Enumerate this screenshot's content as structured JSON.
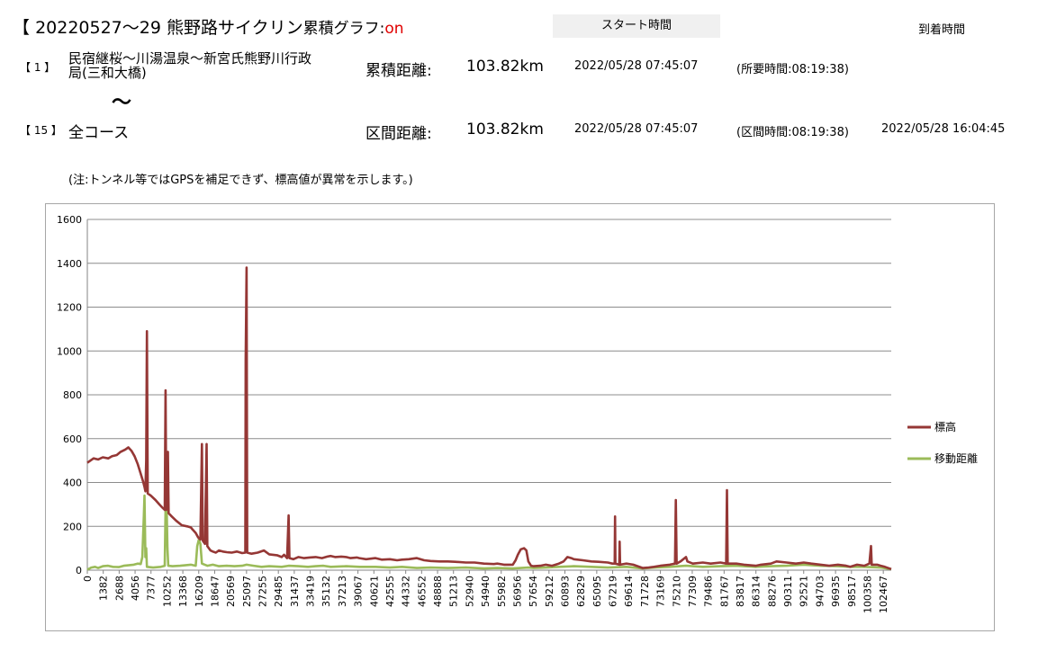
{
  "header": {
    "title_bracket": "【",
    "title_text": "20220527～29 熊野路サイクリン",
    "graph_label": "累積グラフ:",
    "graph_state": "on",
    "start_time_label": "スタート時間",
    "arrival_time_label": "到着時間"
  },
  "routes": {
    "first": {
      "num": "【 1 】",
      "name_line1": "民宿継桜～川湯温泉～新宮氏熊野川行政",
      "name_line2": "局(三和大橋)",
      "distance_label": "累積距離:",
      "distance_value": "103.82km",
      "start": "2022/05/28 07:45:07",
      "duration": "(所要時間:08:19:38)"
    },
    "tilde": "～",
    "second": {
      "num": "【 15 】",
      "name": "全コース",
      "distance_label": "区間距離:",
      "distance_value": "103.82km",
      "start": "2022/05/28 07:45:07",
      "duration": "(区間時間:08:19:38)",
      "arrival": "2022/05/28 16:04:45"
    }
  },
  "note": "(注:トンネル等ではGPSを補足できず、標高値が異常を示します。)",
  "chart_data": {
    "type": "line",
    "title": "",
    "xlabel": "",
    "ylabel": "",
    "ylim": [
      0,
      1600
    ],
    "xlim": [
      0,
      103820
    ],
    "y_ticks": [
      0,
      200,
      400,
      600,
      800,
      1000,
      1200,
      1400,
      1600
    ],
    "x_tick_labels": [
      "0",
      "1382",
      "2688",
      "4056",
      "7377",
      "10252",
      "13368",
      "16209",
      "18647",
      "20569",
      "25097",
      "27255",
      "29485",
      "31437",
      "33419",
      "35132",
      "37213",
      "39067",
      "40621",
      "42555",
      "44332",
      "46552",
      "48888",
      "51213",
      "52940",
      "54940",
      "55982",
      "56956",
      "57654",
      "59212",
      "60893",
      "62829",
      "65095",
      "67219",
      "69614",
      "71728",
      "73169",
      "75210",
      "77309",
      "79486",
      "81767",
      "83817",
      "86314",
      "88276",
      "90311",
      "92521",
      "94703",
      "96935",
      "98517",
      "100358",
      "102467"
    ],
    "grid": true,
    "legend_position": "right",
    "series": [
      {
        "name": "標高",
        "color": "#953735",
        "points": [
          [
            0,
            490
          ],
          [
            800,
            510
          ],
          [
            1400,
            505
          ],
          [
            2000,
            515
          ],
          [
            2700,
            510
          ],
          [
            3200,
            520
          ],
          [
            3800,
            525
          ],
          [
            4300,
            540
          ],
          [
            4900,
            550
          ],
          [
            5300,
            560
          ],
          [
            5700,
            545
          ],
          [
            6100,
            520
          ],
          [
            6500,
            485
          ],
          [
            6900,
            440
          ],
          [
            7200,
            405
          ],
          [
            7377,
            380
          ],
          [
            7500,
            360
          ],
          [
            7600,
            500
          ],
          [
            7700,
            1090
          ],
          [
            7800,
            350
          ],
          [
            8200,
            340
          ],
          [
            8800,
            320
          ],
          [
            9300,
            300
          ],
          [
            9700,
            285
          ],
          [
            10000,
            275
          ],
          [
            10100,
            820
          ],
          [
            10200,
            275
          ],
          [
            10400,
            540
          ],
          [
            10500,
            260
          ],
          [
            10900,
            245
          ],
          [
            11500,
            225
          ],
          [
            12200,
            205
          ],
          [
            12900,
            200
          ],
          [
            13368,
            195
          ],
          [
            13600,
            185
          ],
          [
            14000,
            170
          ],
          [
            14300,
            150
          ],
          [
            14600,
            140
          ],
          [
            14800,
            575
          ],
          [
            14900,
            135
          ],
          [
            15200,
            120
          ],
          [
            15400,
            575
          ],
          [
            15500,
            110
          ],
          [
            15900,
            90
          ],
          [
            16209,
            85
          ],
          [
            16600,
            80
          ],
          [
            17000,
            90
          ],
          [
            17500,
            85
          ],
          [
            18000,
            82
          ],
          [
            18647,
            80
          ],
          [
            19300,
            85
          ],
          [
            20000,
            78
          ],
          [
            20400,
            80
          ],
          [
            20450,
            960
          ],
          [
            20569,
            1380
          ],
          [
            20650,
            80
          ],
          [
            21200,
            75
          ],
          [
            22000,
            80
          ],
          [
            22800,
            90
          ],
          [
            23500,
            72
          ],
          [
            24000,
            70
          ],
          [
            24500,
            68
          ],
          [
            25097,
            60
          ],
          [
            25400,
            70
          ],
          [
            25800,
            55
          ],
          [
            26000,
            250
          ],
          [
            26100,
            55
          ],
          [
            26600,
            50
          ],
          [
            27255,
            60
          ],
          [
            28000,
            55
          ],
          [
            28700,
            58
          ],
          [
            29485,
            60
          ],
          [
            30300,
            55
          ],
          [
            31000,
            62
          ],
          [
            31437,
            65
          ],
          [
            32000,
            60
          ],
          [
            32800,
            62
          ],
          [
            33419,
            60
          ],
          [
            34000,
            55
          ],
          [
            34800,
            58
          ],
          [
            35132,
            55
          ],
          [
            36000,
            50
          ],
          [
            37213,
            55
          ],
          [
            38000,
            48
          ],
          [
            39067,
            50
          ],
          [
            40000,
            45
          ],
          [
            40621,
            48
          ],
          [
            41500,
            50
          ],
          [
            42555,
            55
          ],
          [
            43500,
            45
          ],
          [
            44332,
            42
          ],
          [
            45500,
            40
          ],
          [
            46552,
            40
          ],
          [
            47500,
            38
          ],
          [
            48888,
            35
          ],
          [
            50000,
            35
          ],
          [
            51213,
            30
          ],
          [
            52500,
            28
          ],
          [
            52940,
            30
          ],
          [
            53800,
            25
          ],
          [
            54940,
            25
          ],
          [
            55300,
            45
          ],
          [
            55600,
            70
          ],
          [
            55982,
            95
          ],
          [
            56400,
            100
          ],
          [
            56700,
            90
          ],
          [
            56956,
            40
          ],
          [
            57300,
            20
          ],
          [
            57654,
            18
          ],
          [
            58500,
            20
          ],
          [
            59212,
            25
          ],
          [
            60000,
            20
          ],
          [
            60893,
            30
          ],
          [
            61500,
            40
          ],
          [
            62000,
            60
          ],
          [
            62500,
            55
          ],
          [
            62829,
            50
          ],
          [
            64000,
            45
          ],
          [
            65095,
            40
          ],
          [
            66000,
            38
          ],
          [
            67219,
            35
          ],
          [
            67800,
            30
          ],
          [
            68100,
            30
          ],
          [
            68150,
            245
          ],
          [
            68200,
            30
          ],
          [
            68700,
            25
          ],
          [
            68750,
            130
          ],
          [
            68800,
            25
          ],
          [
            69614,
            30
          ],
          [
            70500,
            25
          ],
          [
            71728,
            10
          ],
          [
            72500,
            12
          ],
          [
            73169,
            15
          ],
          [
            74000,
            20
          ],
          [
            75210,
            25
          ],
          [
            75900,
            30
          ],
          [
            76000,
            320
          ],
          [
            76100,
            30
          ],
          [
            76600,
            40
          ],
          [
            77309,
            60
          ],
          [
            77500,
            40
          ],
          [
            78200,
            30
          ],
          [
            79486,
            35
          ],
          [
            80500,
            30
          ],
          [
            81767,
            35
          ],
          [
            82500,
            30
          ],
          [
            82600,
            365
          ],
          [
            82700,
            30
          ],
          [
            83817,
            30
          ],
          [
            84800,
            25
          ],
          [
            86314,
            20
          ],
          [
            87000,
            25
          ],
          [
            88276,
            30
          ],
          [
            89000,
            40
          ],
          [
            90311,
            35
          ],
          [
            91500,
            30
          ],
          [
            92521,
            35
          ],
          [
            93500,
            30
          ],
          [
            94703,
            25
          ],
          [
            95800,
            20
          ],
          [
            96935,
            25
          ],
          [
            98000,
            20
          ],
          [
            98517,
            15
          ],
          [
            99400,
            25
          ],
          [
            100358,
            20
          ],
          [
            101000,
            30
          ],
          [
            101200,
            110
          ],
          [
            101300,
            25
          ],
          [
            102000,
            25
          ],
          [
            102467,
            20
          ],
          [
            103000,
            15
          ],
          [
            103820,
            5
          ]
        ]
      },
      {
        "name": "移動距離",
        "color": "#9bbb59",
        "points": [
          [
            0,
            2
          ],
          [
            500,
            12
          ],
          [
            1000,
            15
          ],
          [
            1382,
            10
          ],
          [
            2000,
            18
          ],
          [
            2688,
            20
          ],
          [
            3300,
            15
          ],
          [
            4056,
            14
          ],
          [
            4700,
            20
          ],
          [
            5300,
            22
          ],
          [
            6000,
            25
          ],
          [
            6500,
            30
          ],
          [
            6900,
            28
          ],
          [
            7100,
            60
          ],
          [
            7200,
            150
          ],
          [
            7300,
            250
          ],
          [
            7377,
            340
          ],
          [
            7500,
            60
          ],
          [
            7600,
            100
          ],
          [
            7700,
            15
          ],
          [
            8500,
            12
          ],
          [
            9500,
            15
          ],
          [
            10000,
            20
          ],
          [
            10100,
            280
          ],
          [
            10252,
            270
          ],
          [
            10350,
            100
          ],
          [
            10450,
            20
          ],
          [
            11000,
            18
          ],
          [
            12000,
            20
          ],
          [
            13368,
            25
          ],
          [
            14000,
            20
          ],
          [
            14200,
            110
          ],
          [
            14400,
            140
          ],
          [
            14600,
            120
          ],
          [
            14800,
            30
          ],
          [
            15500,
            20
          ],
          [
            16209,
            25
          ],
          [
            17000,
            18
          ],
          [
            18000,
            20
          ],
          [
            19000,
            18
          ],
          [
            20000,
            20
          ],
          [
            20569,
            25
          ],
          [
            21500,
            20
          ],
          [
            22500,
            15
          ],
          [
            23500,
            18
          ],
          [
            25097,
            15
          ],
          [
            26000,
            20
          ],
          [
            27255,
            18
          ],
          [
            28500,
            15
          ],
          [
            29485,
            18
          ],
          [
            30500,
            20
          ],
          [
            31437,
            15
          ],
          [
            33419,
            18
          ],
          [
            35132,
            15
          ],
          [
            37213,
            15
          ],
          [
            39067,
            12
          ],
          [
            40621,
            15
          ],
          [
            42555,
            10
          ],
          [
            44332,
            12
          ],
          [
            46552,
            10
          ],
          [
            48888,
            12
          ],
          [
            51213,
            8
          ],
          [
            52940,
            10
          ],
          [
            54940,
            8
          ],
          [
            55982,
            10
          ],
          [
            56956,
            12
          ],
          [
            57654,
            10
          ],
          [
            59212,
            12
          ],
          [
            60893,
            15
          ],
          [
            62829,
            18
          ],
          [
            65095,
            15
          ],
          [
            67219,
            12
          ],
          [
            69614,
            15
          ],
          [
            71728,
            8
          ],
          [
            73169,
            12
          ],
          [
            75210,
            15
          ],
          [
            77309,
            20
          ],
          [
            79486,
            15
          ],
          [
            81767,
            18
          ],
          [
            83817,
            20
          ],
          [
            86314,
            15
          ],
          [
            88276,
            18
          ],
          [
            90311,
            20
          ],
          [
            92521,
            25
          ],
          [
            94703,
            20
          ],
          [
            96935,
            18
          ],
          [
            98517,
            15
          ],
          [
            100358,
            15
          ],
          [
            102467,
            12
          ],
          [
            103820,
            5
          ]
        ]
      }
    ]
  }
}
